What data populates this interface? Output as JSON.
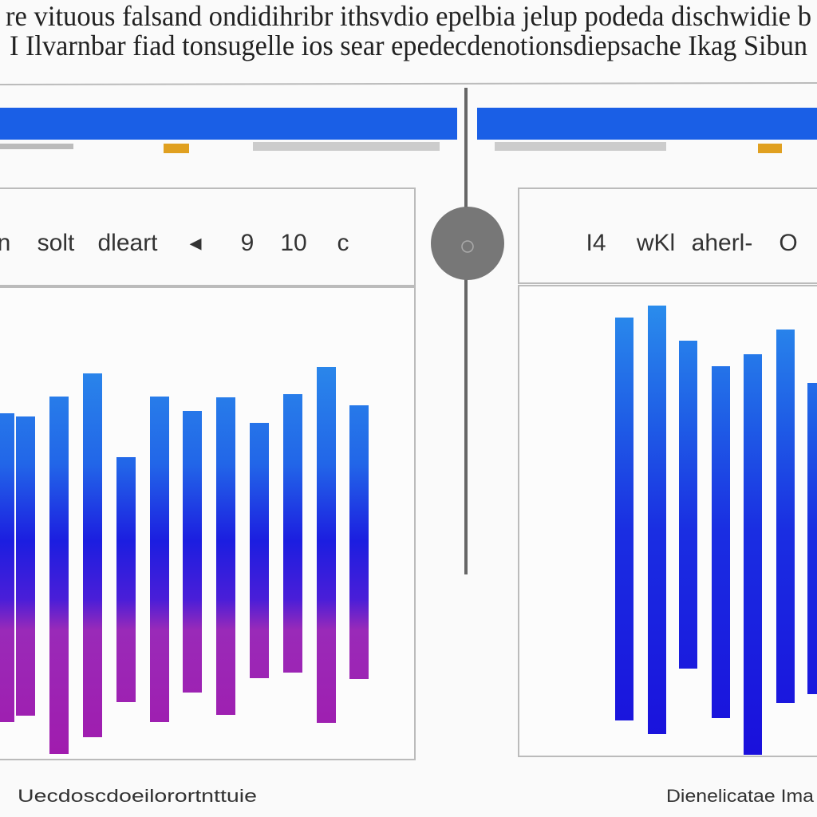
{
  "header": {
    "line1": "re vituous falsand ondidihribr ithsvdio epelbia jelup podeda dischwidie b",
    "line2": "I Ilvarnbar fiad tonsugelle ios sear epedecdenotionsdiepsache Ikag Sibun"
  },
  "left_panel": {
    "toolbar": [
      "n",
      "solt",
      "dleart",
      "◂",
      "9",
      "10",
      "c"
    ],
    "footer": "Uecdoscdoeilorortnttuie"
  },
  "right_panel": {
    "toolbar": [
      "I4",
      "wKl",
      "aherl-",
      "O"
    ],
    "footer": "Dienelicatae Ima"
  }
}
